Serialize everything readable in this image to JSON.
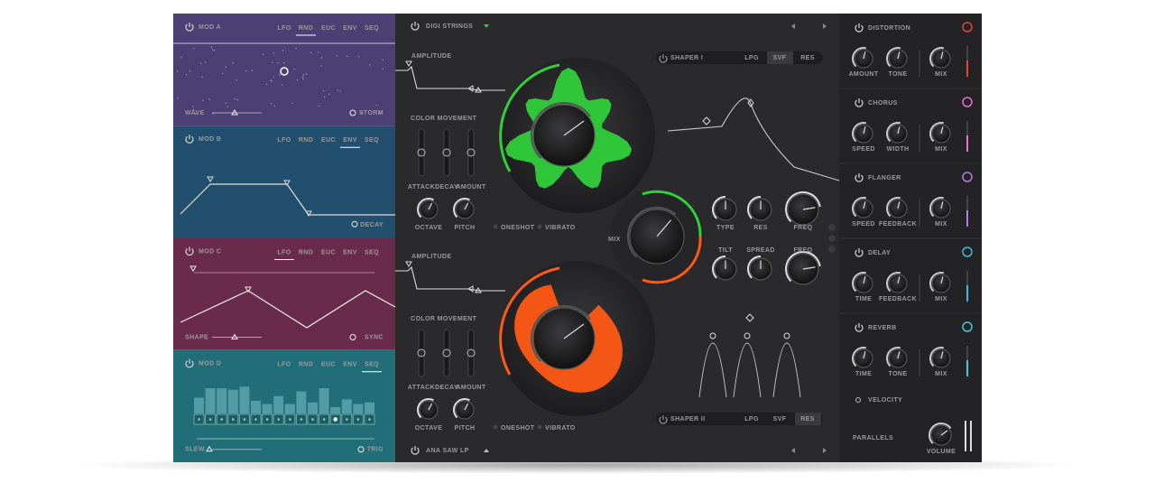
{
  "modulators": [
    {
      "title": "MOD A",
      "tabs": [
        "LFO",
        "RND",
        "EUC",
        "ENV",
        "SEQ"
      ],
      "active_tab": 1,
      "param": "WAVE",
      "toggle": "STORM",
      "color": "#4b3f74"
    },
    {
      "title": "MOD B",
      "tabs": [
        "LFO",
        "RND",
        "EUC",
        "ENV",
        "SEQ"
      ],
      "active_tab": 3,
      "toggle": "DECAY",
      "color": "#224f6d"
    },
    {
      "title": "MOD C",
      "tabs": [
        "LFO",
        "RND",
        "EUC",
        "ENV",
        "SEQ"
      ],
      "active_tab": 0,
      "param": "SHAPE",
      "toggle": "SYNC",
      "color": "#6a2a4b"
    },
    {
      "title": "MOD D",
      "tabs": [
        "LFO",
        "RND",
        "EUC",
        "ENV",
        "SEQ"
      ],
      "active_tab": 4,
      "param": "SLEW",
      "toggle": "TRIG",
      "color": "#226e78"
    }
  ],
  "layers": [
    {
      "preset": "DIGI STRINGS",
      "color": "#2fd03a",
      "amplitude": "AMPLITUDE",
      "color_movement": "COLOR MOVEMENT",
      "sliders": [
        "ATTACK",
        "DECAY",
        "AMOUNT"
      ],
      "knobs": [
        "OCTAVE",
        "PITCH"
      ],
      "toggles": [
        "ONESHOT",
        "VIBRATO"
      ],
      "shaper": "SHAPER I",
      "shaper_modes": [
        "LPG",
        "SVF",
        "RES"
      ],
      "active_mode": 1
    },
    {
      "preset": "ANA SAW LP",
      "color": "#ff5a14",
      "amplitude": "AMPLITUDE",
      "color_movement": "COLOR MOVEMENT",
      "sliders": [
        "ATTACK",
        "DECAY",
        "AMOUNT"
      ],
      "knobs": [
        "OCTAVE",
        "PITCH"
      ],
      "toggles": [
        "ONESHOT",
        "VIBRATO"
      ],
      "shaper": "SHAPER II",
      "shaper_modes": [
        "LPG",
        "SVF",
        "RES"
      ],
      "active_mode": 2
    }
  ],
  "mix": "MIX",
  "filter_knobs": [
    "TYPE",
    "RES",
    "FREQ"
  ],
  "spread_knobs": [
    "TILT",
    "SPREAD",
    "FREQ"
  ],
  "effects": [
    {
      "name": "DISTORTION",
      "color": "#e0453a",
      "knobs": [
        "AMOUNT",
        "TONE",
        "MIX"
      ]
    },
    {
      "name": "CHORUS",
      "color": "#e070d8",
      "knobs": [
        "SPEED",
        "WIDTH",
        "MIX"
      ]
    },
    {
      "name": "FLANGER",
      "color": "#b878e8",
      "knobs": [
        "SPEED",
        "FEEDBACK",
        "MIX"
      ]
    },
    {
      "name": "DELAY",
      "color": "#40b8e0",
      "knobs": [
        "TIME",
        "FEEDBACK",
        "MIX"
      ]
    },
    {
      "name": "REVERB",
      "color": "#40c8e0",
      "knobs": [
        "TIME",
        "TONE",
        "MIX"
      ]
    }
  ],
  "velocity": "VELOCITY",
  "brand": "PARALLELS",
  "volume": "VOLUME"
}
